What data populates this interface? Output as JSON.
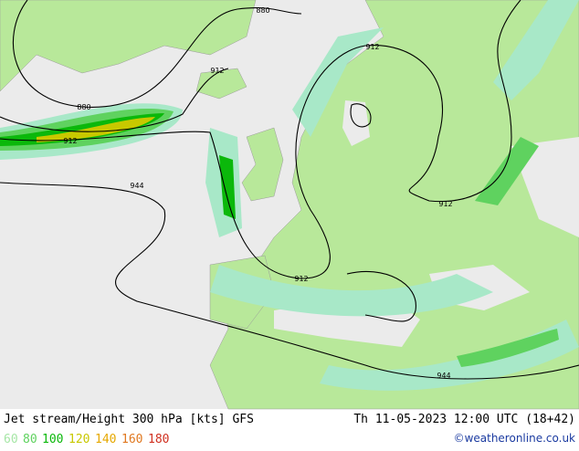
{
  "footer": {
    "title": "Jet stream/Height 300 hPa [kts] GFS",
    "datetime": "Th 11-05-2023 12:00 UTC (18+42)",
    "credit": "©weatheronline.co.uk",
    "legend": [
      {
        "label": "60",
        "color": "#a6e6a6"
      },
      {
        "label": "80",
        "color": "#5fd25f"
      },
      {
        "label": "100",
        "color": "#0bb80b"
      },
      {
        "label": "120",
        "color": "#c8c800"
      },
      {
        "label": "140",
        "color": "#e6a800"
      },
      {
        "label": "160",
        "color": "#e07820"
      },
      {
        "label": "180",
        "color": "#d03020"
      }
    ]
  },
  "map": {
    "contour_labels": [
      "880",
      "880",
      "912",
      "912",
      "912",
      "912",
      "912",
      "944",
      "944"
    ]
  }
}
